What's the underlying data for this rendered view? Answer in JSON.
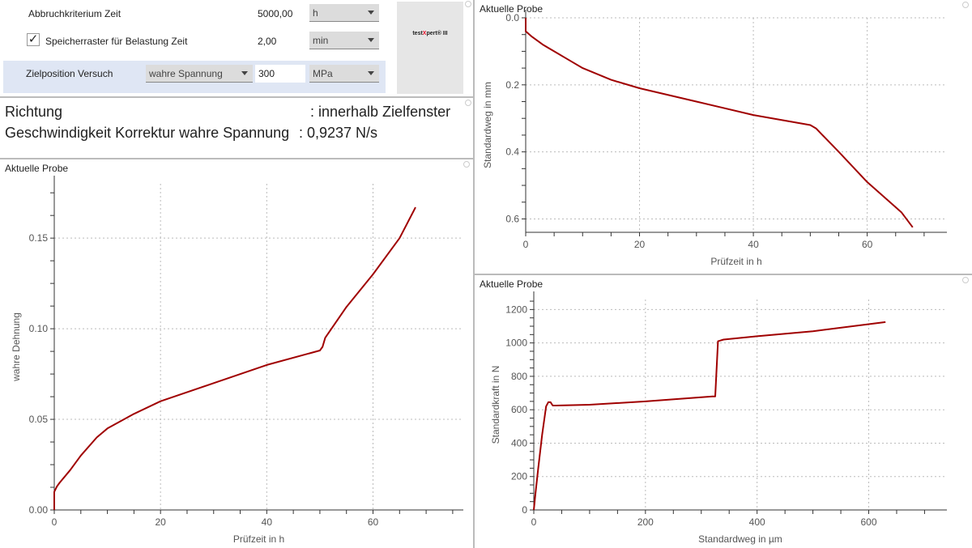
{
  "form": {
    "abbruch_label": "Abbruchkriterium Zeit",
    "abbruch_value": "5000,00",
    "abbruch_unit": "h",
    "speicher_checked": true,
    "speicher_label": "Speicherraster für Belastung Zeit",
    "speicher_value": "2,00",
    "speicher_unit": "min",
    "ziel_label": "Zielposition Versuch",
    "ziel_quantity": "wahre Spannung",
    "ziel_value": "300",
    "ziel_unit": "MPa",
    "logo_text_pre": "test",
    "logo_text_x": "X",
    "logo_text_post": "pert® III"
  },
  "status": {
    "richtung_label": "Richtung",
    "richtung_value": ":  innerhalb Zielfenster",
    "geschw_label": "Geschwindigkeit Korrektur wahre  Spannung",
    "geschw_value": ":  0,9237   N/s"
  },
  "colors": {
    "curve": "#a00000",
    "accent": "#e8102a",
    "highlight": "#dfe6f4"
  },
  "chart_data": [
    {
      "type": "line",
      "title": "Aktuelle Probe",
      "xlabel": "Prüfzeit in h",
      "ylabel": "wahre Dehnung",
      "xlim": [
        0,
        77
      ],
      "ylim": [
        0,
        0.18
      ],
      "xticks": [
        "0",
        "20",
        "40",
        "60"
      ],
      "xtick_values": [
        0,
        20,
        40,
        60
      ],
      "yticks": [
        "0.00",
        "0.05",
        "0.10",
        "0.15"
      ],
      "ytick_values": [
        0,
        0.05,
        0.1,
        0.15
      ],
      "series": [
        {
          "name": "Aktuelle Probe",
          "x": [
            0,
            0,
            0.5,
            1,
            3,
            5,
            8,
            10,
            15,
            20,
            30,
            40,
            50,
            50.5,
            51,
            55,
            60,
            65,
            68
          ],
          "y": [
            0,
            0.01,
            0.013,
            0.015,
            0.022,
            0.03,
            0.04,
            0.045,
            0.053,
            0.06,
            0.07,
            0.08,
            0.088,
            0.09,
            0.095,
            0.112,
            0.13,
            0.15,
            0.167
          ]
        }
      ]
    },
    {
      "type": "line",
      "title": "Aktuelle Probe",
      "xlabel": "Prüfzeit in h",
      "ylabel": "Standardweg in mm",
      "xlim": [
        0,
        74
      ],
      "ylim": [
        0,
        0.64
      ],
      "y_inverted": true,
      "xticks": [
        "0",
        "20",
        "40",
        "60"
      ],
      "xtick_values": [
        0,
        20,
        40,
        60
      ],
      "yticks": [
        "0.0",
        "0.2",
        "0.4",
        "0.6"
      ],
      "ytick_values": [
        0,
        0.2,
        0.4,
        0.6
      ],
      "series": [
        {
          "name": "Aktuelle Probe",
          "x": [
            0,
            0,
            1,
            3,
            5,
            8,
            10,
            15,
            20,
            30,
            40,
            50,
            51,
            55,
            60,
            66,
            68
          ],
          "y": [
            0,
            0.04,
            0.055,
            0.08,
            0.1,
            0.13,
            0.15,
            0.185,
            0.21,
            0.25,
            0.29,
            0.32,
            0.33,
            0.4,
            0.49,
            0.58,
            0.625
          ]
        }
      ]
    },
    {
      "type": "line",
      "title": "Aktuelle Probe",
      "xlabel": "Standardweg in µm",
      "ylabel": "Standardkraft in N",
      "xlim": [
        0,
        740
      ],
      "ylim": [
        0,
        1260
      ],
      "xticks": [
        "0",
        "200",
        "400",
        "600"
      ],
      "xtick_values": [
        0,
        200,
        400,
        600
      ],
      "yticks": [
        "0",
        "200",
        "400",
        "600",
        "800",
        "1000",
        "1200"
      ],
      "ytick_values": [
        0,
        200,
        400,
        600,
        800,
        1000,
        1200
      ],
      "series": [
        {
          "name": "Aktuelle Probe",
          "x": [
            0,
            3,
            8,
            15,
            22,
            26,
            30,
            34,
            40,
            100,
            200,
            320,
            325,
            330,
            340,
            400,
            500,
            630
          ],
          "y": [
            0,
            100,
            250,
            450,
            620,
            645,
            645,
            625,
            625,
            630,
            650,
            680,
            680,
            1010,
            1020,
            1040,
            1070,
            1125
          ]
        }
      ]
    }
  ]
}
